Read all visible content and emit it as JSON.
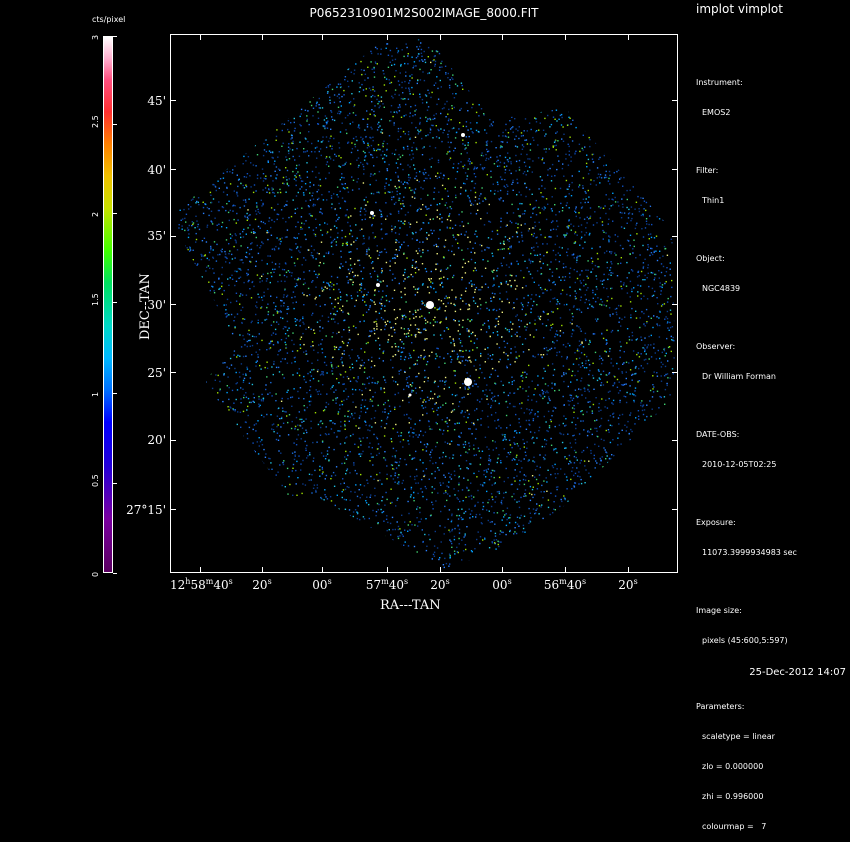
{
  "app": {
    "title": "implot vimplot"
  },
  "plot": {
    "title": "P0652310901M2S002IMAGE_8000.FIT",
    "x_axis_title": "RA---TAN",
    "y_axis_title": "DEC--TAN",
    "y_ticks": [
      "45'",
      "40'",
      "35'",
      "30'",
      "25'",
      "20'",
      "27°15'"
    ],
    "x_ticks": [
      {
        "h": "12",
        "m": "58",
        "s": "40"
      },
      {
        "s": "20"
      },
      {
        "s": "00"
      },
      {
        "m": "57",
        "s": "40"
      },
      {
        "s": "20"
      },
      {
        "s": "00"
      },
      {
        "m": "56",
        "s": "40"
      },
      {
        "s": "20"
      }
    ]
  },
  "colorbar": {
    "unit": "cts/pixel",
    "ticks": [
      "3",
      "2.5",
      "2",
      "1.5",
      "1",
      "0.5",
      "0"
    ],
    "colormap": "7"
  },
  "info": {
    "instrument_label": "Instrument:",
    "instrument": "EMOS2",
    "filter_label": "Filter:",
    "filter": "Thin1",
    "object_label": "Object:",
    "object": "NGC4839",
    "observer_label": "Observer:",
    "observer": "Dr William Forman",
    "date_label": "DATE-OBS:",
    "date": "2010-12-05T02:25",
    "exposure_label": "Exposure:",
    "exposure": "11073.3999934983 sec",
    "image_size_label": "Image size:",
    "image_size": "pixels (45:600,5:597)",
    "parameters_label": "Parameters:",
    "scaletype": "scaletype = linear",
    "zlo": "zlo = 0.000000",
    "zhi": "zhi = 0.996000",
    "colourmap": "colourmap =   7"
  },
  "footer": {
    "timestamp": "25-Dec-2012 14:07"
  },
  "colors": {
    "background": "#000000",
    "text": "#ffffff"
  }
}
